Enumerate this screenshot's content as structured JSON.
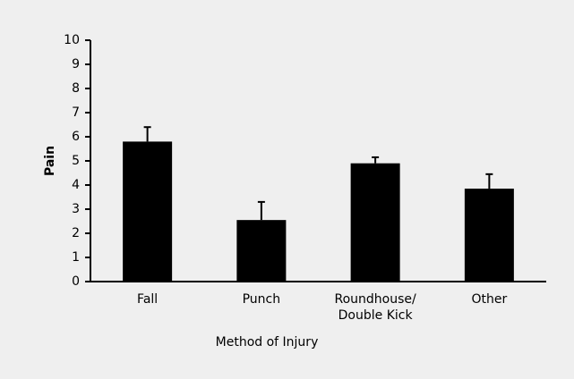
{
  "chart_data": {
    "type": "bar",
    "categories": [
      "Fall",
      "Punch",
      "Roundhouse/\nDouble Kick",
      "Other"
    ],
    "values": [
      5.8,
      2.55,
      4.9,
      3.85
    ],
    "errors": [
      0.6,
      0.75,
      0.25,
      0.6
    ],
    "color": "#000000",
    "xlabel": "Method of Injury",
    "ylabel": "Pain",
    "ylim": [
      0,
      10
    ],
    "yticks": [
      0,
      1,
      2,
      3,
      4,
      5,
      6,
      7,
      8,
      9,
      10
    ],
    "grid": false
  }
}
